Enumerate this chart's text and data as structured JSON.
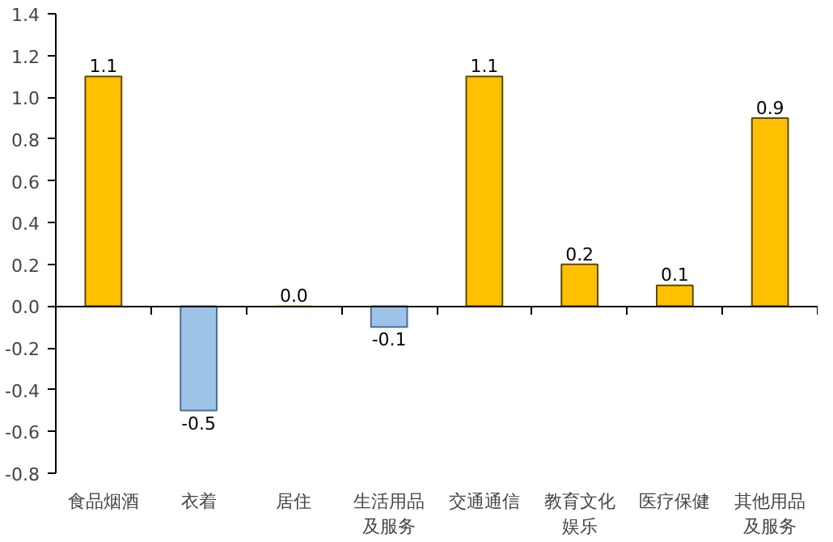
{
  "chart_data": {
    "type": "bar",
    "categories": [
      "食品烟酒",
      "衣着",
      "居住",
      "生活用品及服务",
      "交通通信",
      "教育文化娱乐",
      "医疗保健",
      "其他用品及服务"
    ],
    "values": [
      1.1,
      -0.5,
      0.0,
      -0.1,
      1.1,
      0.2,
      0.1,
      0.9
    ],
    "colors": [
      "#ffc000",
      "#9dc3e6",
      "#ffc000",
      "#9dc3e6",
      "#ffc000",
      "#ffc000",
      "#ffc000",
      "#ffc000"
    ],
    "ylim": [
      -0.8,
      1.4
    ],
    "yticks": [
      {
        "value": -0.8,
        "label": "-0.8"
      },
      -0.6,
      -0.4,
      -0.2,
      {
        "value": 0,
        "label": "0.0"
      },
      0.2,
      0.4,
      0.6,
      0.8,
      {
        "value": 1,
        "label": "1.0"
      },
      1.2,
      1.4
    ],
    "value_labels": [
      "1.1",
      "-0.5",
      "0.0",
      "-0.1",
      "1.1",
      "0.2",
      "0.1",
      "0.9"
    ]
  }
}
